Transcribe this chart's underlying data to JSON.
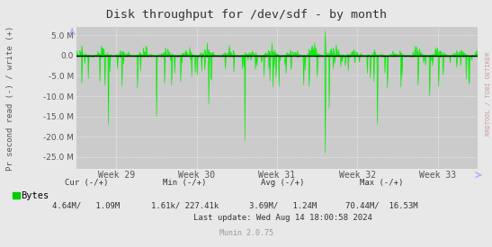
{
  "title": "Disk throughput for /dev/sdf - by month",
  "ylabel": "Pr second read (-) / write (+)",
  "bg_color": "#e8e8e8",
  "plot_bg_color": "#cbcbcb",
  "grid_color_major": "#ffffff",
  "grid_color_minor": "#ffaaaa",
  "line_color": "#00ee00",
  "zero_line_color": "#000000",
  "watermark_text": "RRDTOOL / TOBI OETIKER",
  "watermark_color": "#cc9999",
  "munin_text": "Munin 2.0.75",
  "munin_color": "#999999",
  "ytick_vals": [
    5000000,
    0,
    -5000000,
    -10000000,
    -15000000,
    -20000000,
    -25000000
  ],
  "ylim": [
    -28000000,
    7000000
  ],
  "week_labels": [
    "Week 29",
    "Week 30",
    "Week 31",
    "Week 32",
    "Week 33"
  ],
  "legend_label": "Bytes",
  "legend_color": "#00cc00",
  "stats_cur_label": "Cur (-/+)",
  "stats_min_label": "Min (-/+)",
  "stats_avg_label": "Avg (-/+)",
  "stats_max_label": "Max (-/+)",
  "stats_cur_val": "4.64M/   1.09M",
  "stats_min_val": "1.61k/ 227.41k",
  "stats_avg_val": "3.69M/   1.24M",
  "stats_max_val": "70.44M/  16.53M",
  "last_update": "Last update: Wed Aug 14 18:00:58 2024",
  "n_points": 800,
  "seed": 42,
  "arrow_color": "#aaaaff",
  "title_color": "#333333",
  "tick_color": "#555555"
}
